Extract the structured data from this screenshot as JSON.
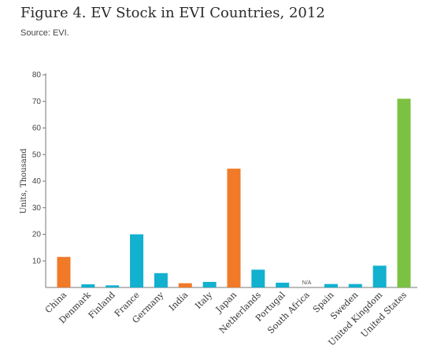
{
  "title": "Figure 4. EV Stock in EVI Countries, 2012",
  "source": "Source: EVI.",
  "colors": {
    "orange": "#f07a28",
    "blue": "#11b1cf",
    "green": "#7cc242",
    "axis": "#777777"
  },
  "chart_data": {
    "type": "bar",
    "ylabel": "Units, Thousand",
    "ylim": [
      0,
      80
    ],
    "yticks": [
      10,
      20,
      30,
      40,
      50,
      60,
      70,
      80
    ],
    "grid": false,
    "categories": [
      "China",
      "Denmark",
      "Finland",
      "France",
      "Germany",
      "India",
      "Italy",
      "Japan",
      "Netherlands",
      "Portugal",
      "South Africa",
      "Spain",
      "Sweden",
      "United Kingdom",
      "United States"
    ],
    "values": [
      11.5,
      1.2,
      0.8,
      20,
      5.4,
      1.6,
      2.1,
      44.7,
      6.7,
      1.8,
      null,
      1.3,
      1.3,
      8.2,
      71
    ],
    "bar_colors": [
      "orange",
      "blue",
      "blue",
      "blue",
      "blue",
      "orange",
      "blue",
      "orange",
      "blue",
      "blue",
      "blue",
      "blue",
      "blue",
      "blue",
      "green"
    ],
    "annotations": [
      {
        "category": "South Africa",
        "text": "N/A"
      }
    ]
  }
}
